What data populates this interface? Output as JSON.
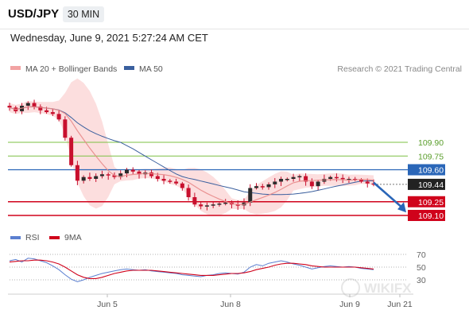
{
  "header": {
    "symbol": "USD/JPY",
    "timeframe": "30 MIN",
    "datetime": "Wednesday, June 9, 2021 5:27:24 AM CET"
  },
  "legend": {
    "ma20": "MA 20 + Bollinger Bands",
    "ma50": "MA 50",
    "source": "Research © 2021 Trading Central",
    "rsi": "RSI",
    "ma9": "9MA"
  },
  "colors": {
    "candle": "#c8102e",
    "ma20": "#e88a8a",
    "bollinger": "#fbd3d3",
    "ma50": "#3a5f9e",
    "support": "#d0021b",
    "resistance": "#7cc043",
    "pivot": "#2a66b8",
    "last_price": "#222222",
    "rsi": "#5b7fd0",
    "rsi_ma": "#d0021b"
  },
  "chart_data": {
    "type": "candlestick",
    "x_ticks": [
      "Jun 5",
      "Jun 8",
      "Jun 9",
      "Jun 21"
    ],
    "levels": [
      {
        "value": 109.9,
        "label": "109.90",
        "kind": "resistance"
      },
      {
        "value": 109.75,
        "label": "109.75",
        "kind": "resistance"
      },
      {
        "value": 109.6,
        "label": "109.60",
        "kind": "pivot"
      },
      {
        "value": 109.44,
        "label": "109.44",
        "kind": "last_price"
      },
      {
        "value": 109.25,
        "label": "109.25",
        "kind": "support"
      },
      {
        "value": 109.1,
        "label": "109.10",
        "kind": "support"
      }
    ],
    "price_closes": [
      110.28,
      110.24,
      110.3,
      110.33,
      110.29,
      110.25,
      110.23,
      110.21,
      110.15,
      109.95,
      109.65,
      109.48,
      109.52,
      109.5,
      109.53,
      109.55,
      109.54,
      109.52,
      109.56,
      109.6,
      109.58,
      109.55,
      109.57,
      109.53,
      109.5,
      109.48,
      109.47,
      109.45,
      109.4,
      109.3,
      109.22,
      109.2,
      109.21,
      109.22,
      109.23,
      109.24,
      109.22,
      109.21,
      109.24,
      109.4,
      109.42,
      109.41,
      109.44,
      109.47,
      109.5,
      109.5,
      109.52,
      109.53,
      109.47,
      109.42,
      109.47,
      109.5,
      109.52,
      109.51,
      109.5,
      109.5,
      109.49,
      109.47,
      109.45,
      109.44
    ],
    "projection": {
      "from": 109.46,
      "to": 109.15,
      "direction": "down"
    },
    "rsi_levels": [
      70,
      50,
      30
    ],
    "rsi_values": [
      60,
      62,
      58,
      64,
      63,
      60,
      57,
      52,
      46,
      38,
      31,
      27,
      30,
      34,
      37,
      40,
      42,
      44,
      46,
      47,
      46,
      45,
      46,
      44,
      43,
      42,
      41,
      40,
      38,
      37,
      36,
      35,
      37,
      38,
      40,
      41,
      40,
      39,
      42,
      50,
      54,
      52,
      56,
      58,
      60,
      58,
      55,
      53,
      50,
      47,
      49,
      51,
      52,
      51,
      50,
      51,
      50,
      48,
      47,
      46
    ],
    "rsi_ma_values": [
      58,
      59,
      60,
      60,
      61,
      61,
      60,
      58,
      55,
      50,
      44,
      38,
      34,
      32,
      32,
      34,
      37,
      40,
      42,
      44,
      45,
      45,
      45,
      45,
      44,
      43,
      42,
      41,
      40,
      39,
      38,
      37,
      37,
      37,
      38,
      39,
      40,
      40,
      41,
      43,
      46,
      48,
      50,
      53,
      55,
      56,
      56,
      55,
      54,
      52,
      51,
      50,
      50,
      50,
      50,
      50,
      50,
      49,
      48,
      47
    ]
  }
}
